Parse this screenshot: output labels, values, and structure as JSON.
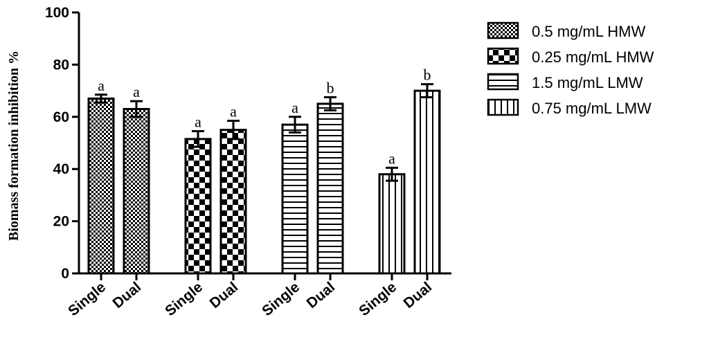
{
  "chart_data": {
    "type": "bar",
    "title": "",
    "xlabel": "",
    "ylabel": "Biomass formation inhibition %",
    "ylim": [
      0,
      100
    ],
    "yticks": [
      0,
      20,
      40,
      60,
      80,
      100
    ],
    "grid": false,
    "legend_position": "top-right",
    "series": [
      {
        "name": "0.5 mg/mL HMW",
        "pattern": "fine-checker",
        "categories": [
          "Single",
          "Dual"
        ],
        "values": [
          67,
          63
        ],
        "errors": [
          1.5,
          3
        ],
        "significance": [
          "a",
          "a"
        ]
      },
      {
        "name": "0.25 mg/mL HMW",
        "pattern": "large-checker",
        "categories": [
          "Single",
          "Dual"
        ],
        "values": [
          51.5,
          55
        ],
        "errors": [
          3,
          3.5
        ],
        "significance": [
          "a",
          "a"
        ]
      },
      {
        "name": "1.5 mg/mL LMW",
        "pattern": "horizontal-stripes",
        "categories": [
          "Single",
          "Dual"
        ],
        "values": [
          57,
          65
        ],
        "errors": [
          3,
          2.5
        ],
        "significance": [
          "a",
          "b"
        ]
      },
      {
        "name": "0.75 mg/mL LMW",
        "pattern": "vertical-stripes",
        "categories": [
          "Single",
          "Dual"
        ],
        "values": [
          38,
          70
        ],
        "errors": [
          2.5,
          2.5
        ],
        "significance": [
          "a",
          "b"
        ]
      }
    ]
  }
}
